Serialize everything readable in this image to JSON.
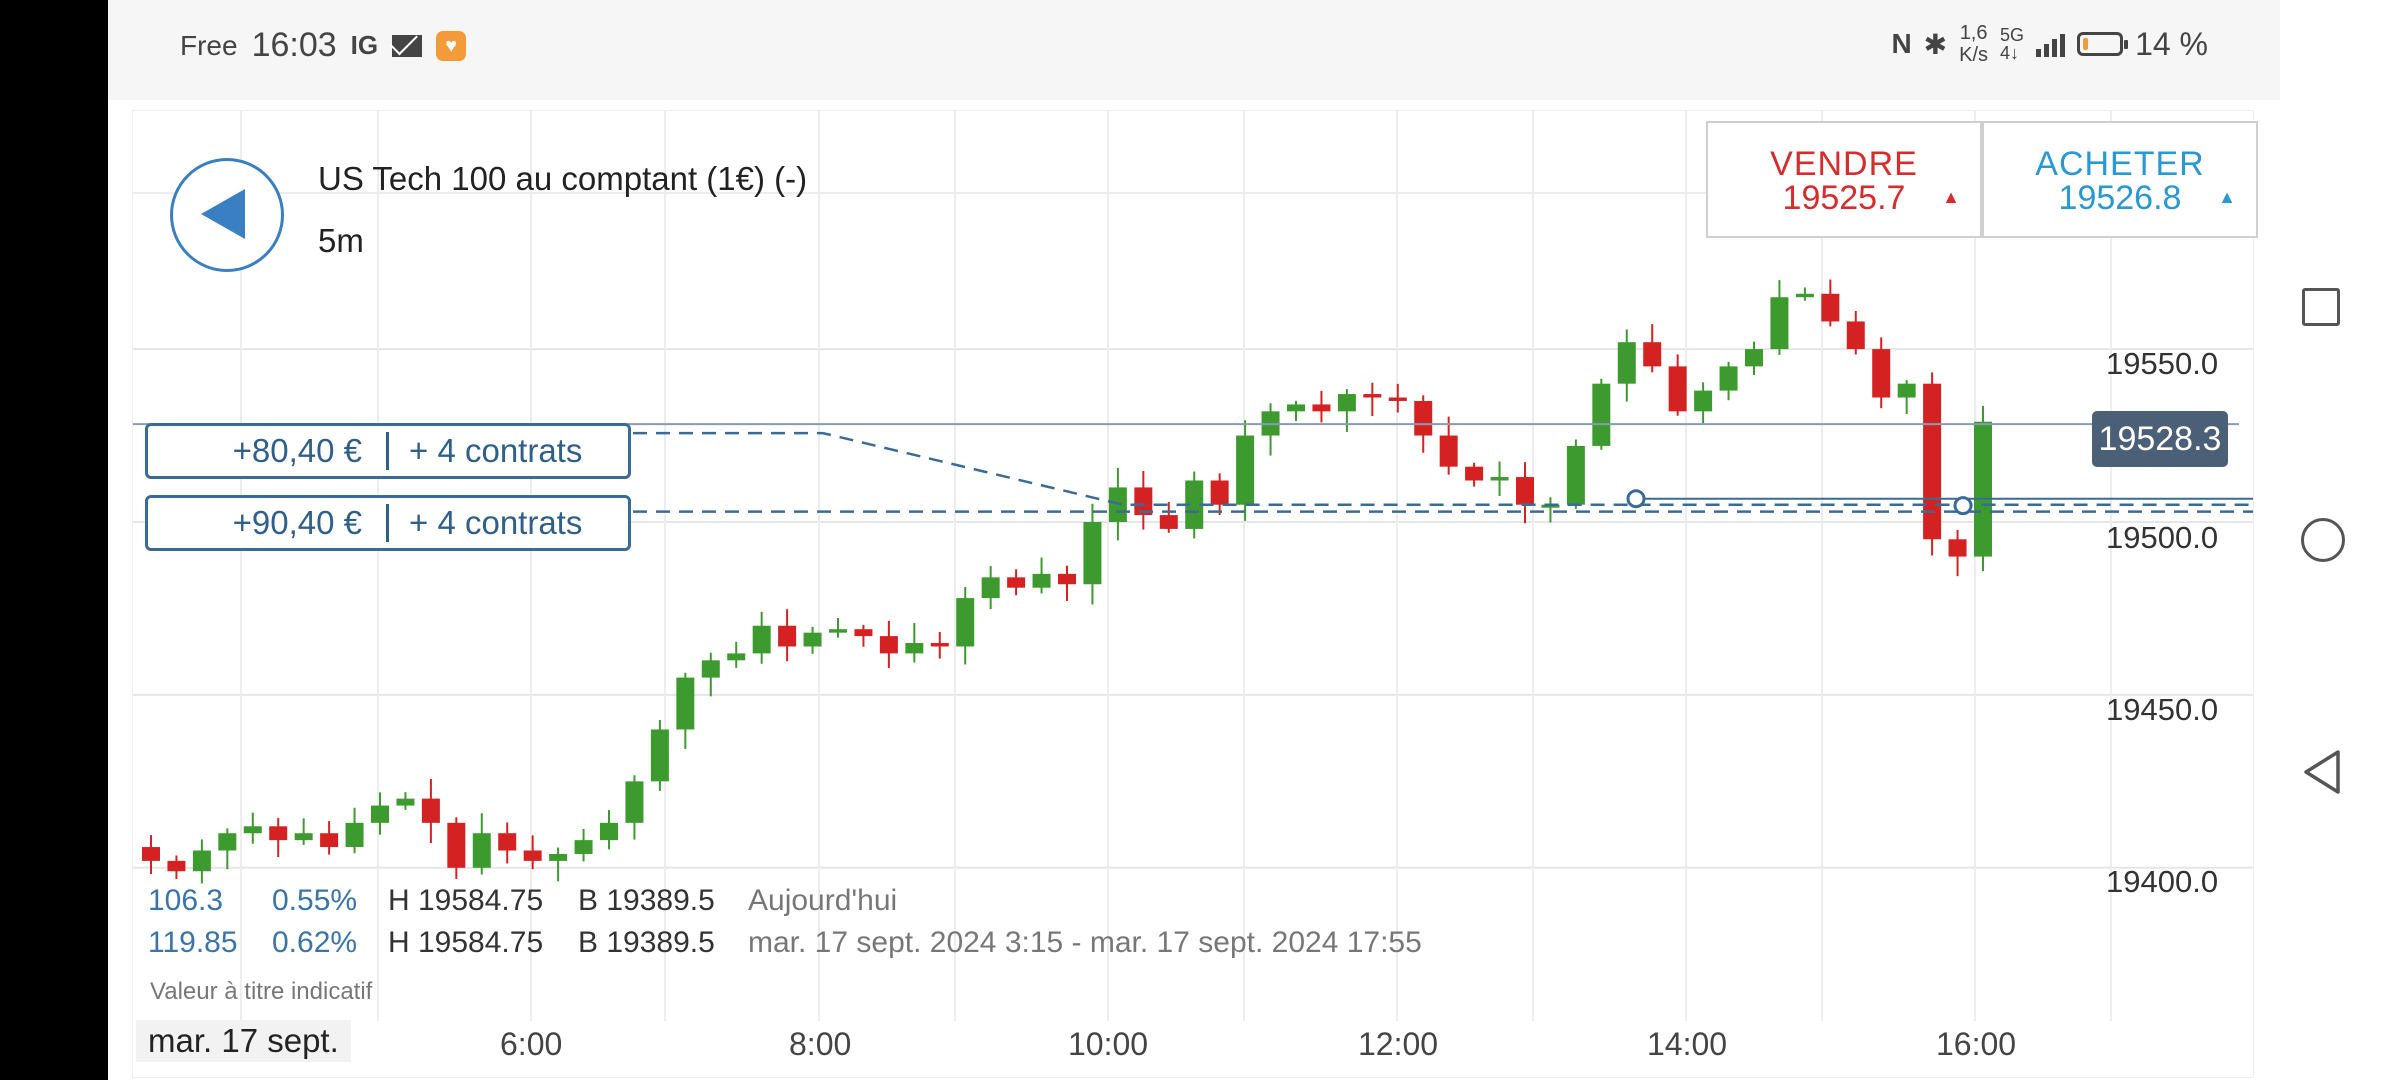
{
  "status_bar": {
    "carrier": "Free",
    "time": "16:03",
    "ig_icon": "IG",
    "speed_top": "1,6",
    "speed_bottom": "K/s",
    "signal_top": "5G",
    "signal_bottom": "4↓",
    "battery_level": 0.14,
    "battery_pct": "14 %"
  },
  "instrument": {
    "name": "US Tech 100 au comptant (1€) (-)",
    "timeframe": "5m"
  },
  "sell": {
    "label": "VENDRE",
    "price": "19525.7",
    "arrow": "▲"
  },
  "buy": {
    "label": "ACHETER",
    "price": "19526.8",
    "arrow": "▲"
  },
  "positions": [
    {
      "pnl": "+80,40 €",
      "qty": "+ 4 contrats"
    },
    {
      "pnl": "+90,40 €",
      "qty": "+ 4 contrats"
    }
  ],
  "current_price": "19528.3",
  "y_axis": [
    "19550.0",
    "19500.0",
    "19450.0",
    "19400.0"
  ],
  "x_axis": [
    "6:00",
    "8:00",
    "10:00",
    "12:00",
    "14:00",
    "16:00"
  ],
  "date_label": "mar. 17 sept.",
  "stats": {
    "row1": {
      "change": "106.3",
      "pct": "0.55%",
      "high": "H 19584.75",
      "low": "B 19389.5",
      "period": "Aujourd'hui"
    },
    "row2": {
      "change": "119.85",
      "pct": "0.62%",
      "high": "H 19584.75",
      "low": "B 19389.5",
      "period": "mar. 17 sept. 2024 3:15 - mar. 17 sept. 2024 17:55"
    }
  },
  "indicative": "Valeur à titre indicatif",
  "colors": {
    "up": "#3d9a2f",
    "down": "#d42222",
    "accent": "#3a7fc1",
    "sell": "#d62c2c",
    "buy": "#2a98d2"
  },
  "chart_data": {
    "type": "candlestick",
    "title": "US Tech 100 au comptant (1€) (-)",
    "timeframe": "5m",
    "ylim": [
      19380,
      19580
    ],
    "y_ticks": [
      19550,
      19500,
      19450,
      19400
    ],
    "x_ticks": [
      "6:00",
      "8:00",
      "10:00",
      "12:00",
      "14:00",
      "16:00"
    ],
    "grid": true,
    "current_price": 19528.3,
    "position_levels": [
      19505,
      19503
    ],
    "close_series": [
      19402,
      19399,
      19405,
      19410,
      19412,
      19408,
      19410,
      19406,
      19413,
      19418,
      19420,
      19413,
      19400,
      19410,
      19405,
      19402,
      19404,
      19408,
      19413,
      19425,
      19440,
      19455,
      19460,
      19462,
      19470,
      19464,
      19468,
      19469,
      19467,
      19462,
      19465,
      19464,
      19478,
      19484,
      19481,
      19485,
      19482,
      19500,
      19510,
      19502,
      19498,
      19512,
      19505,
      19525,
      19532,
      19534,
      19532,
      19537,
      19536,
      19535,
      19525,
      19516,
      19512,
      19513,
      19505,
      19505,
      19522,
      19540,
      19552,
      19545,
      19532,
      19538,
      19545,
      19550,
      19565,
      19566,
      19558,
      19550,
      19536,
      19540,
      19495,
      19490,
      19529
    ]
  }
}
